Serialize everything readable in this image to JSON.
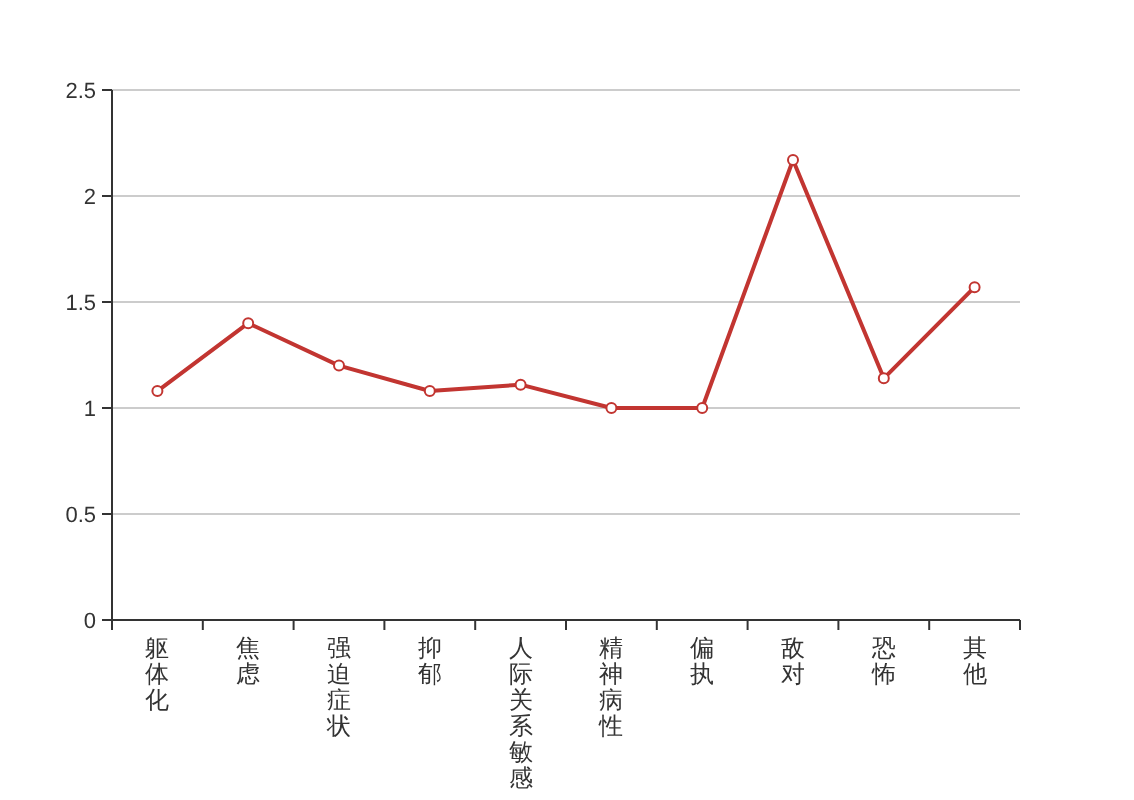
{
  "chart_data": {
    "type": "line",
    "categories": [
      "躯体化",
      "焦虑",
      "强迫症状",
      "抑郁",
      "人际关系敏感",
      "精神病性",
      "偏执",
      "敌对",
      "恐怖",
      "其他"
    ],
    "values": [
      1.08,
      1.4,
      1.2,
      1.08,
      1.11,
      1.0,
      1.0,
      2.17,
      1.14,
      1.57
    ],
    "color": "#c23531",
    "ylim": [
      0,
      2.5
    ],
    "yticks": [
      0,
      0.5,
      1,
      1.5,
      2,
      2.5
    ],
    "grid": "y",
    "marker": "circle",
    "line_style": "solid"
  }
}
